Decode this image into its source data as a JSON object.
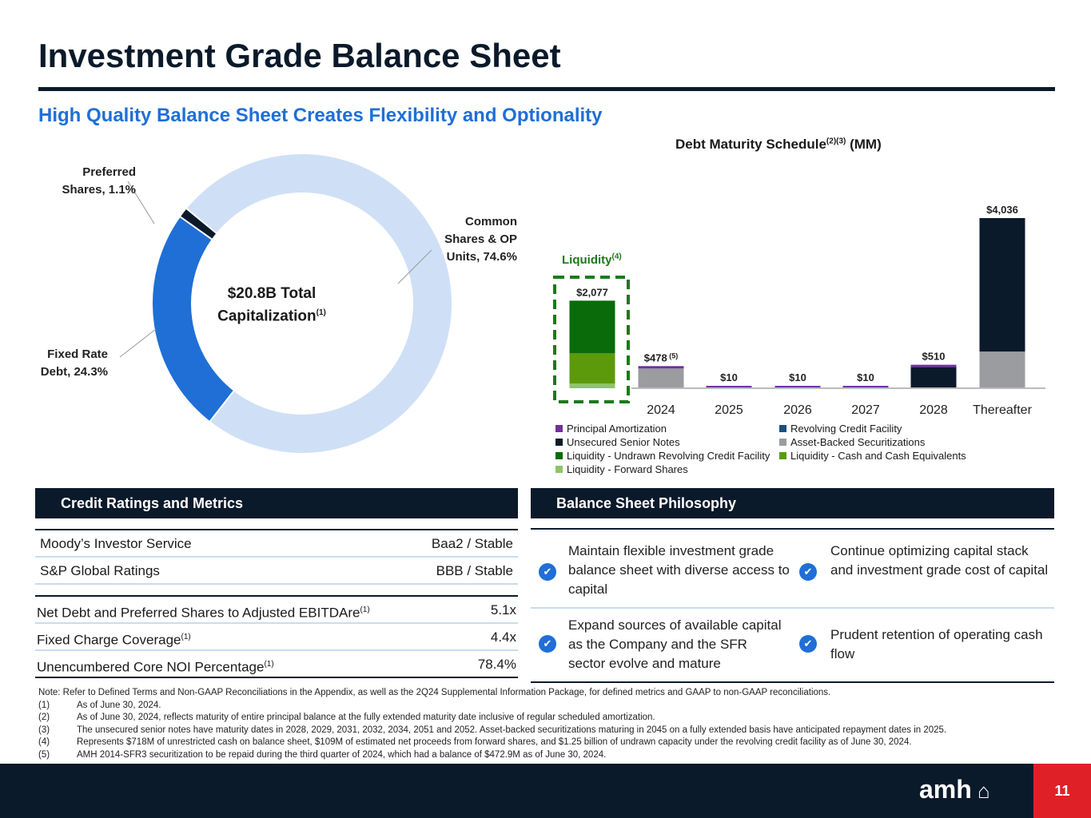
{
  "title": "Investment Grade Balance Sheet",
  "subtitle": "High Quality Balance Sheet Creates Flexibility and Optionality",
  "donut": {
    "center_line1": "$20.8B Total",
    "center_line2": "Capitalization",
    "center_sup": "(1)",
    "slices": [
      {
        "label_line1": "Common",
        "label_line2": "Shares & OP",
        "label_line3": "Units, 74.6%",
        "value": 74.6,
        "color": "#cfe0f6"
      },
      {
        "label_line1": "Fixed Rate",
        "label_line2": "Debt, 24.3%",
        "value": 24.3,
        "color": "#1f6fd6"
      },
      {
        "label_line1": "Preferred",
        "label_line2": "Shares, 1.1%",
        "value": 1.1,
        "color": "#0b1a2a"
      }
    ]
  },
  "chart_data": {
    "type": "bar",
    "title": "Debt Maturity Schedule",
    "title_sup": "(2)(3)",
    "title_suffix": " (MM)",
    "categories": [
      "",
      "2024",
      "2025",
      "2026",
      "2027",
      "2028",
      "Thereafter"
    ],
    "liquidity_label": "Liquidity",
    "liquidity_sup": "(4)",
    "totals": [
      "$2,077",
      "$478",
      "$10",
      "$10",
      "$10",
      "$510",
      "$4,036"
    ],
    "total_sups": [
      "",
      "(5)",
      "",
      "",
      "",
      "",
      ""
    ],
    "series": [
      {
        "name": "Liquidity - Forward Shares",
        "color": "#8fc46a",
        "values": [
          109,
          0,
          0,
          0,
          0,
          0,
          0
        ]
      },
      {
        "name": "Liquidity - Cash and Cash Equivalents",
        "color": "#5c9a0c",
        "values": [
          718,
          0,
          0,
          0,
          0,
          0,
          0
        ]
      },
      {
        "name": "Liquidity - Undrawn Revolving Credit Facility",
        "color": "#0a6b0a",
        "values": [
          1250,
          0,
          0,
          0,
          0,
          0,
          0
        ]
      },
      {
        "name": "Asset-Backed Securitizations",
        "color": "#9a9ca0",
        "values": [
          0,
          468,
          0,
          0,
          0,
          0,
          870
        ]
      },
      {
        "name": "Unsecured Senior Notes",
        "color": "#0b1a2a",
        "values": [
          0,
          0,
          0,
          0,
          0,
          500,
          3166
        ]
      },
      {
        "name": "Revolving Credit Facility",
        "color": "#1a4f80",
        "values": [
          0,
          0,
          0,
          0,
          0,
          0,
          0
        ]
      },
      {
        "name": "Principal Amortization",
        "color": "#7030a0",
        "values": [
          0,
          10,
          10,
          10,
          10,
          10,
          0
        ]
      }
    ],
    "legend": [
      "Principal Amortization",
      "Revolving Credit Facility",
      "Unsecured Senior Notes",
      "Asset-Backed Securitizations",
      "Liquidity - Undrawn Revolving Credit Facility",
      "Liquidity - Cash and Cash Equivalents",
      "Liquidity - Forward Shares"
    ],
    "legend_colors": [
      "#7030a0",
      "#1a4f80",
      "#0b1a2a",
      "#9a9ca0",
      "#0a6b0a",
      "#5c9a0c",
      "#8fc46a"
    ],
    "ylim": [
      0,
      4036
    ],
    "grid": false
  },
  "credit": {
    "header": "Credit Ratings and Metrics",
    "ratings": [
      {
        "label": "Moody’s Investor Service",
        "value": "Baa2 / Stable"
      },
      {
        "label": "S&P Global Ratings",
        "value": "BBB / Stable"
      }
    ],
    "metrics": [
      {
        "label": "Net Debt and Preferred Shares to Adjusted EBITDAre",
        "sup": "(1)",
        "value": "5.1x"
      },
      {
        "label": "Fixed Charge Coverage",
        "sup": "(1)",
        "value": "4.4x"
      },
      {
        "label": "Unencumbered Core NOI Percentage",
        "sup": "(1)",
        "value": "78.4%"
      }
    ]
  },
  "philosophy": {
    "header": "Balance Sheet Philosophy",
    "items": [
      "Maintain flexible investment grade balance sheet with diverse access to capital",
      "Continue optimizing capital stack and investment grade cost of capital",
      "Expand sources of available capital as the Company and the SFR sector evolve and mature",
      "Prudent retention of operating cash flow"
    ]
  },
  "notes": {
    "intro": "Note: Refer to Defined Terms and Non-GAAP Reconciliations in the Appendix, as well as the 2Q24 Supplemental Information Package, for defined metrics and GAAP to non-GAAP reconciliations.",
    "items": [
      {
        "n": "(1)",
        "t": "As of June 30, 2024."
      },
      {
        "n": "(2)",
        "t": "As of June 30, 2024, reflects maturity of entire principal balance at the fully extended maturity date inclusive of regular scheduled amortization."
      },
      {
        "n": "(3)",
        "t": "The unsecured senior notes have maturity dates in 2028, 2029, 2031, 2032, 2034, 2051 and 2052. Asset-backed securitizations maturing in 2045 on a fully extended basis have anticipated repayment dates in 2025."
      },
      {
        "n": "(4)",
        "t": "Represents $718M of unrestricted cash on balance sheet, $109M of estimated net proceeds from forward shares, and $1.25 billion of undrawn capacity under the revolving credit facility as of June 30, 2024."
      },
      {
        "n": "(5)",
        "t": "AMH 2014-SFR3 securitization to be repaid during the third quarter of 2024, which had a balance of $472.9M as of June 30, 2024."
      }
    ]
  },
  "footer": {
    "logo": "amh",
    "page": "11"
  }
}
